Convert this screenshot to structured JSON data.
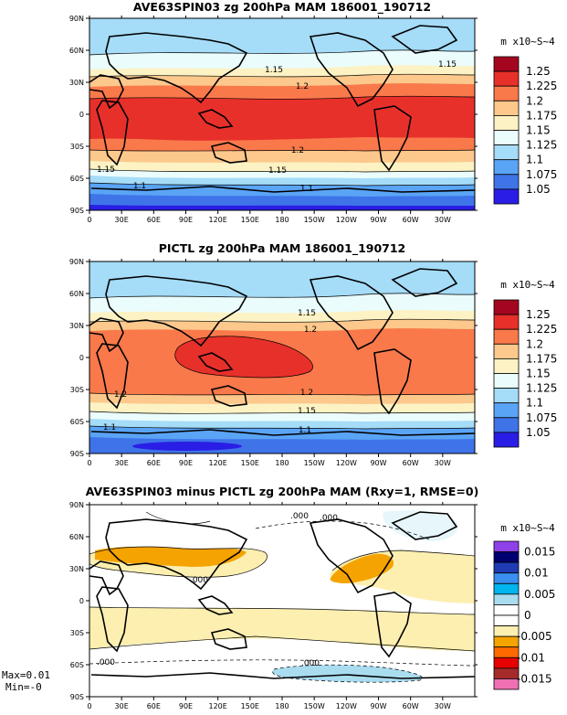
{
  "chart_data": [
    {
      "type": "heatmap",
      "title": "AVE63SPIN03 zg 200hPa MAM 186001_190712",
      "units": "m x10~S~4",
      "x_ticks": [
        "0",
        "30E",
        "60E",
        "90E",
        "120E",
        "150E",
        "180",
        "150W",
        "120W",
        "90W",
        "60W",
        "30W"
      ],
      "y_ticks": [
        "90N",
        "60N",
        "30N",
        "0",
        "30S",
        "60S",
        "90S"
      ],
      "xlim": [
        0,
        360
      ],
      "ylim": [
        -90,
        90
      ],
      "levels": [
        "1.05",
        "1.075",
        "1.1",
        "1.125",
        "1.15",
        "1.175",
        "1.2",
        "1.225",
        "1.25"
      ],
      "colors": [
        "#2a1ee6",
        "#3e74e8",
        "#5aa4f6",
        "#a5dcf8",
        "#eafcfc",
        "#fcf2c4",
        "#fcc88c",
        "#f9794b",
        "#e8302b",
        "#a5061f"
      ],
      "contour_labels": [
        "1.15",
        "1.2",
        "1.15",
        "1.2",
        "1.15",
        "1.15",
        "1.1",
        "1.1"
      ]
    },
    {
      "type": "heatmap",
      "title": "PICTL zg 200hPa MAM 186001_190712",
      "units": "m x10~S~4",
      "x_ticks": [
        "0",
        "30E",
        "60E",
        "90E",
        "120E",
        "150E",
        "180",
        "150W",
        "120W",
        "90W",
        "60W",
        "30W"
      ],
      "y_ticks": [
        "90N",
        "60N",
        "30N",
        "0",
        "30S",
        "60S",
        "90S"
      ],
      "xlim": [
        0,
        360
      ],
      "ylim": [
        -90,
        90
      ],
      "levels": [
        "1.05",
        "1.075",
        "1.1",
        "1.125",
        "1.15",
        "1.175",
        "1.2",
        "1.225",
        "1.25"
      ],
      "colors": [
        "#2a1ee6",
        "#3e74e8",
        "#5aa4f6",
        "#a5dcf8",
        "#eafcfc",
        "#fcf2c4",
        "#fcc88c",
        "#f9794b",
        "#e8302b",
        "#a5061f"
      ],
      "contour_labels": [
        "1.15",
        "1.2",
        "1.2",
        "1.2",
        "1.15",
        "1.1",
        "1.1"
      ]
    },
    {
      "type": "heatmap",
      "title": "AVE63SPIN03 minus PICTL zg 200hPa MAM (Rxy=1, RMSE=0)",
      "units": "m x10~S~4",
      "x_ticks": [
        "0",
        "30E",
        "60E",
        "90E",
        "120E",
        "150E",
        "180",
        "150W",
        "120W",
        "90W",
        "60W",
        "30W"
      ],
      "y_ticks": [
        "90N",
        "60N",
        "30N",
        "0",
        "30S",
        "60S",
        "90S"
      ],
      "xlim": [
        0,
        360
      ],
      "ylim": [
        -90,
        90
      ],
      "levels": [
        "0.015",
        "0.01",
        "0.005",
        "0",
        "-0.005",
        "-0.01",
        "-0.015"
      ],
      "colors": [
        "#f070b4",
        "#a52a2a",
        "#e60000",
        "#ff6a00",
        "#f5a300",
        "#fcefb0",
        "#ffffff",
        "#ffffff",
        "#aadcf0",
        "#00b4f0",
        "#3a8ff0",
        "#1e3cb4",
        "#000070",
        "#9040e8"
      ],
      "contour_labels": [
        ".000",
        ".000",
        ".000",
        ".000",
        ".000"
      ],
      "stats": {
        "max": "Max=0.01",
        "min": "Min=-0"
      }
    }
  ]
}
